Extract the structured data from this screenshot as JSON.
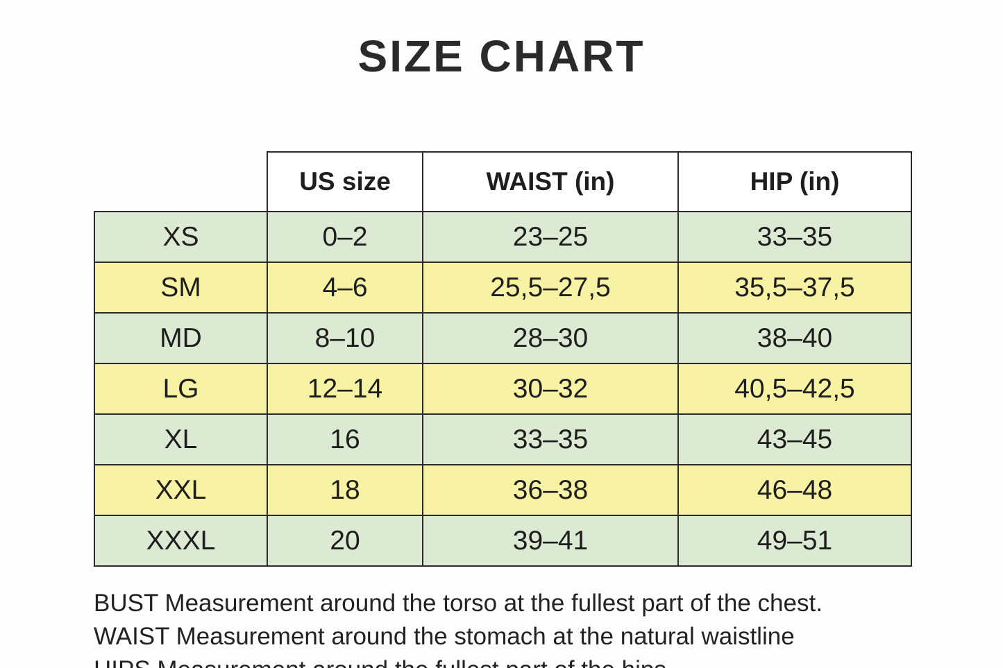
{
  "page": {
    "title": "SIZE CHART"
  },
  "table": {
    "columns": [
      "US size",
      "WAIST (in)",
      "HIP (in)"
    ],
    "rows": [
      {
        "size": "XS",
        "us_size": "0–2",
        "waist": "23–25",
        "hip": "33–35",
        "row_color": "green"
      },
      {
        "size": "SM",
        "us_size": "4–6",
        "waist": "25,5–27,5",
        "hip": "35,5–37,5",
        "row_color": "yellow"
      },
      {
        "size": "MD",
        "us_size": "8–10",
        "waist": "28–30",
        "hip": "38–40",
        "row_color": "green"
      },
      {
        "size": "LG",
        "us_size": "12–14",
        "waist": "30–32",
        "hip": "40,5–42,5",
        "row_color": "yellow"
      },
      {
        "size": "XL",
        "us_size": "16",
        "waist": "33–35",
        "hip": "43–45",
        "row_color": "green"
      },
      {
        "size": "XXL",
        "us_size": "18",
        "waist": "36–38",
        "hip": "46–48",
        "row_color": "yellow"
      },
      {
        "size": "XXXL",
        "us_size": "20",
        "waist": "39–41",
        "hip": "49–51",
        "row_color": "green"
      }
    ],
    "colors": {
      "green": "#dcead3",
      "yellow": "#f8f2a5",
      "border": "#2b2b2b",
      "text": "#1e1e1e",
      "background": "#fefefe"
    }
  },
  "notes": [
    "BUST Measurement around the torso at the fullest part of the chest.",
    "WAIST Measurement around the stomach at the natural waistline",
    "HIPS Measurement around the fullest part of the hips."
  ]
}
